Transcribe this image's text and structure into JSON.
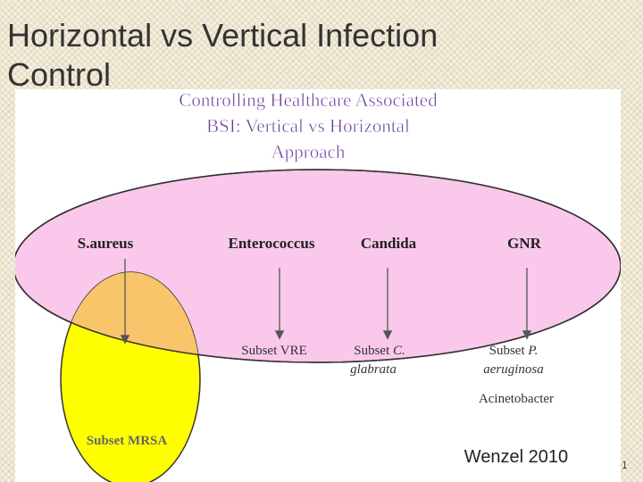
{
  "slide_title": "Horizontal vs Vertical Infection Control",
  "diagram": {
    "title_lines": [
      "Controlling Healthcare Associated",
      "BSI: Vertical vs Horizontal",
      "Approach"
    ],
    "pathogens": [
      "S.aureus",
      "Enterococcus",
      "Candida",
      "GNR"
    ],
    "subset_vre": "Subset VRE",
    "subset_candida": {
      "prefix": "Subset",
      "species": [
        "C.",
        "glabrata"
      ]
    },
    "subset_gnr": {
      "prefix": "Subset",
      "species": [
        "P.",
        "aeruginosa"
      ]
    },
    "acinetobacter": "Acinetobacter",
    "subset_mrsa": "Subset MRSA",
    "citation": "Wenzel 2010"
  },
  "page_number": "1"
}
